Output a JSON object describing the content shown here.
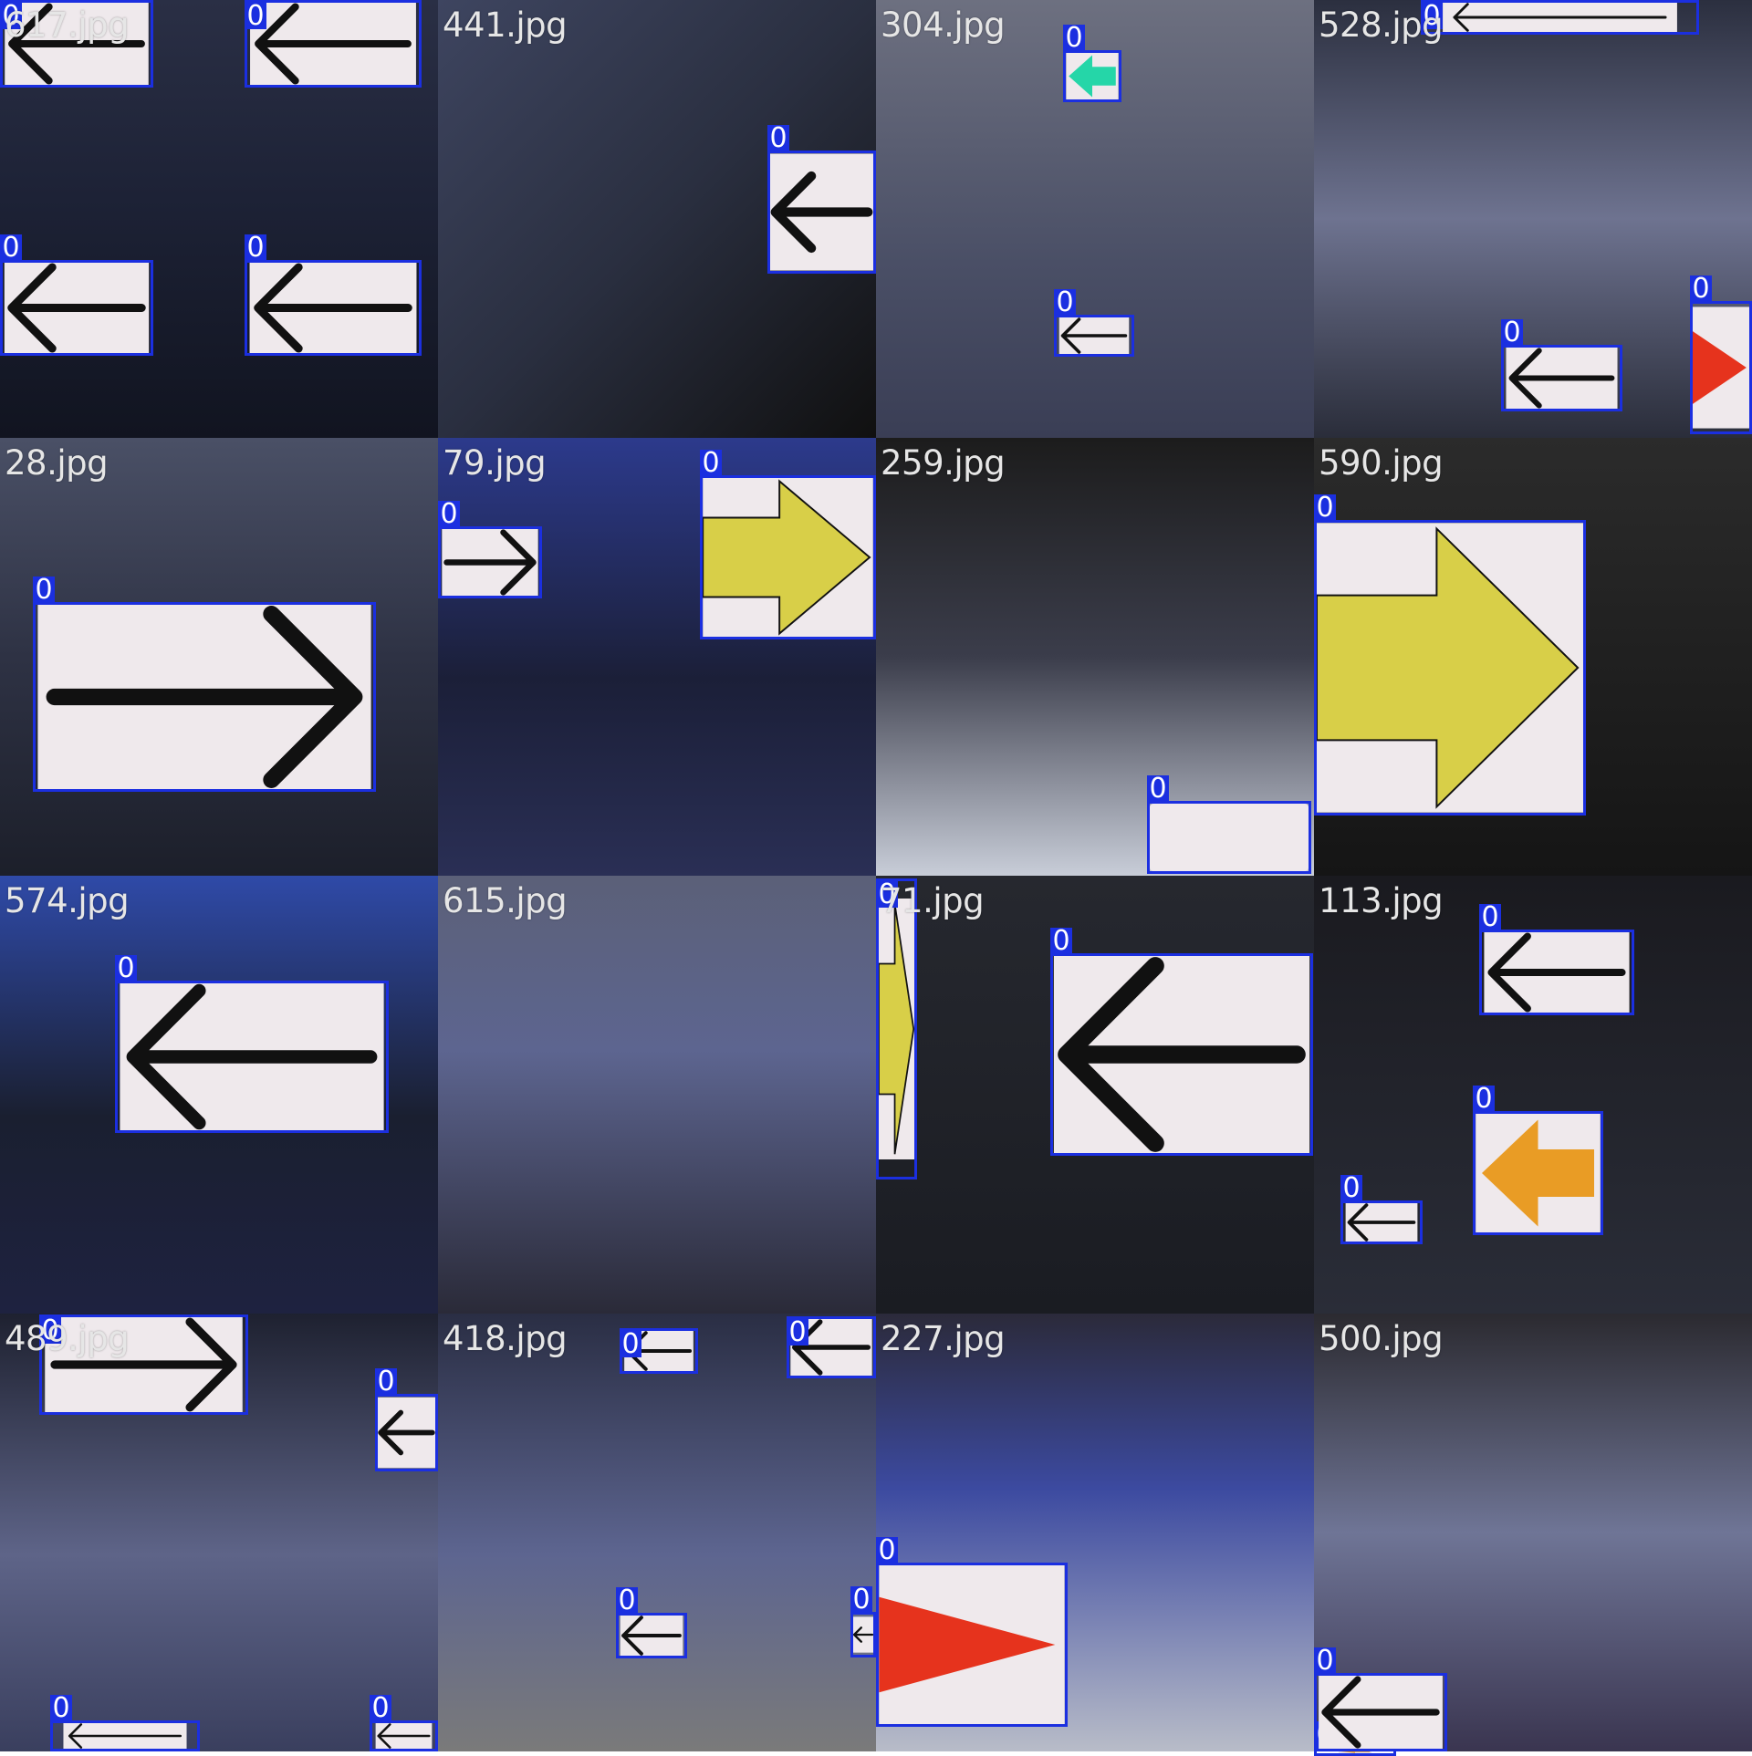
{
  "grid": {
    "tiles": [
      {
        "title": "617.jpg",
        "bg": "linear-gradient(180deg,#2a2f45 0%,#1d2236 45%,#111420 100%)"
      },
      {
        "title": "441.jpg",
        "bg": "linear-gradient(135deg,#3e4560 0%,#2a2f40 50%,#101010 100%)"
      },
      {
        "title": "304.jpg",
        "bg": "linear-gradient(180deg,#6d7080 0%,#4a4f66 60%,#3a3e55 100%)"
      },
      {
        "title": "528.jpg",
        "bg": "linear-gradient(180deg,#2b2f3f 0%,#6e7390 50%,#2a2d3a 100%)"
      },
      {
        "title": "28.jpg",
        "bg": "linear-gradient(180deg,#4a5066 0%,#2e3244 50%,#1c1f2a 100%)"
      },
      {
        "title": "79.jpg",
        "bg": "linear-gradient(180deg,#2c3a8c 0%,#1b1f38 55%,#2a2f55 100%)"
      },
      {
        "title": "259.jpg",
        "bg": "linear-gradient(180deg,#1c1c1c 0%,#3b3d4b 50%,#c8cdd8 100%)"
      },
      {
        "title": "590.jpg",
        "bg": "linear-gradient(180deg,#2b2b2b 0%,#151515 100%)"
      },
      {
        "title": "574.jpg",
        "bg": "linear-gradient(180deg,#2f4aa8 0%,#1a1f30 55%,#1e2240 100%)"
      },
      {
        "title": "615.jpg",
        "bg": "linear-gradient(180deg,#5b6078 0%,#5d6590 40%,#2a2a38 100%)"
      },
      {
        "title": "71.jpg",
        "bg": "linear-gradient(180deg,#26282f 0%,#1a1c22 100%)"
      },
      {
        "title": "113.jpg",
        "bg": "linear-gradient(180deg,#1a1a1f 0%,#2a2d38 100%)"
      },
      {
        "title": "489.jpg",
        "bg": "linear-gradient(180deg,#1e2130 0%,#5e6488 55%,#3a3f5e 100%)"
      },
      {
        "title": "418.jpg",
        "bg": "linear-gradient(180deg,#2a2e44 0%,#5d6590 55%,#7a7a7a 100%)"
      },
      {
        "title": "227.jpg",
        "bg": "linear-gradient(180deg,#2b2a3a 0%,#3c4aa0 40%,#b8bcc8 100%)"
      },
      {
        "title": "500.jpg",
        "bg": "linear-gradient(180deg,#2b2a30 0%,#6f7596 50%,#3a3550 100%)"
      }
    ],
    "box_label": "0"
  },
  "colors": {
    "box_stroke": "#1b2fe0",
    "title_text": "#e6e6e6",
    "card_white": "#efe9ec",
    "arrow_black": "#111111",
    "arrow_yellow": "#d8cf48",
    "arrow_green": "#25d6a8",
    "arrow_orange": "#e99c25",
    "arrow_red": "#e6331d"
  }
}
